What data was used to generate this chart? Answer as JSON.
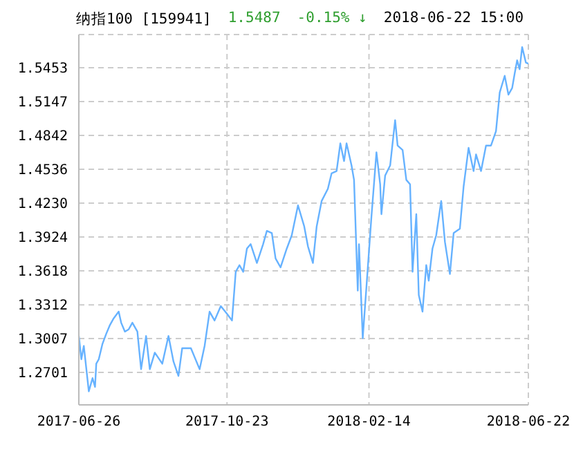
{
  "chart_data": {
    "type": "line",
    "title": "纳指100 [159941]",
    "annotations": [
      "1.5487",
      "-0.15% ↓",
      "2018-06-22 15:00"
    ],
    "x": [
      "2017-06-26",
      "2017-06-28",
      "2017-06-30",
      "2017-07-04",
      "2017-07-07",
      "2017-07-09",
      "2017-07-10",
      "2017-07-12",
      "2017-07-15",
      "2017-07-18",
      "2017-07-21",
      "2017-07-24",
      "2017-07-28",
      "2017-07-30",
      "2017-08-02",
      "2017-08-05",
      "2017-08-08",
      "2017-08-12",
      "2017-08-15",
      "2017-08-19",
      "2017-08-22",
      "2017-08-26",
      "2017-09-01",
      "2017-09-06",
      "2017-09-10",
      "2017-09-14",
      "2017-09-17",
      "2017-09-24",
      "2017-10-01",
      "2017-10-05",
      "2017-10-09",
      "2017-10-13",
      "2017-10-18",
      "2017-10-23",
      "2017-10-27",
      "2017-10-30",
      "2017-11-02",
      "2017-11-05",
      "2017-11-08",
      "2017-11-11",
      "2017-11-16",
      "2017-11-21",
      "2017-11-24",
      "2017-11-28",
      "2017-12-01",
      "2017-12-05",
      "2017-12-10",
      "2017-12-14",
      "2017-12-19",
      "2017-12-24",
      "2017-12-27",
      "2017-12-31",
      "2018-01-03",
      "2018-01-07",
      "2018-01-12",
      "2018-01-15",
      "2018-01-19",
      "2018-01-22",
      "2018-01-25",
      "2018-01-27",
      "2018-01-31",
      "2018-02-02",
      "2018-02-05",
      "2018-02-06",
      "2018-02-09",
      "2018-02-12",
      "2018-02-16",
      "2018-02-20",
      "2018-02-23",
      "2018-02-24",
      "2018-02-27",
      "2018-03-03",
      "2018-03-07",
      "2018-03-09",
      "2018-03-13",
      "2018-03-16",
      "2018-03-19",
      "2018-03-21",
      "2018-03-24",
      "2018-03-26",
      "2018-03-29",
      "2018-04-01",
      "2018-04-03",
      "2018-04-06",
      "2018-04-09",
      "2018-04-13",
      "2018-04-16",
      "2018-04-20",
      "2018-04-23",
      "2018-04-28",
      "2018-05-01",
      "2018-05-05",
      "2018-05-09",
      "2018-05-11",
      "2018-05-15",
      "2018-05-19",
      "2018-05-23",
      "2018-05-27",
      "2018-05-30",
      "2018-06-03",
      "2018-06-06",
      "2018-06-09",
      "2018-06-11",
      "2018-06-13",
      "2018-06-15",
      "2018-06-17",
      "2018-06-20",
      "2018-06-22"
    ],
    "values": [
      1.303,
      1.282,
      1.294,
      1.253,
      1.265,
      1.257,
      1.278,
      1.282,
      1.296,
      1.305,
      1.313,
      1.319,
      1.325,
      1.315,
      1.307,
      1.309,
      1.315,
      1.307,
      1.273,
      1.303,
      1.273,
      1.288,
      1.278,
      1.303,
      1.28,
      1.267,
      1.292,
      1.292,
      1.273,
      1.294,
      1.325,
      1.317,
      1.33,
      1.323,
      1.317,
      1.361,
      1.367,
      1.361,
      1.382,
      1.386,
      1.369,
      1.386,
      1.398,
      1.396,
      1.373,
      1.365,
      1.382,
      1.394,
      1.421,
      1.402,
      1.384,
      1.369,
      1.402,
      1.425,
      1.436,
      1.45,
      1.452,
      1.477,
      1.461,
      1.477,
      1.457,
      1.444,
      1.344,
      1.386,
      1.301,
      1.348,
      1.411,
      1.469,
      1.44,
      1.413,
      1.448,
      1.457,
      1.498,
      1.475,
      1.471,
      1.444,
      1.44,
      1.361,
      1.413,
      1.34,
      1.325,
      1.367,
      1.353,
      1.382,
      1.394,
      1.425,
      1.388,
      1.359,
      1.396,
      1.4,
      1.438,
      1.473,
      1.452,
      1.467,
      1.452,
      1.475,
      1.475,
      1.488,
      1.523,
      1.538,
      1.521,
      1.527,
      1.54,
      1.552,
      1.544,
      1.564,
      1.55,
      1.549
    ],
    "color": "#66b2ff",
    "xlim": [
      "2017-06-26",
      "2018-06-22"
    ],
    "xticks": [
      "2017-06-26",
      "2017-10-23",
      "2018-02-14",
      "2018-06-22"
    ],
    "ylim": [
      1.2408,
      1.5753
    ],
    "yticks": [
      1.2701,
      1.3007,
      1.3312,
      1.3618,
      1.3924,
      {
        "value": 1.423,
        "label": "1.4230"
      },
      1.4536,
      1.4842,
      1.5147,
      1.5453
    ],
    "grid": true
  }
}
